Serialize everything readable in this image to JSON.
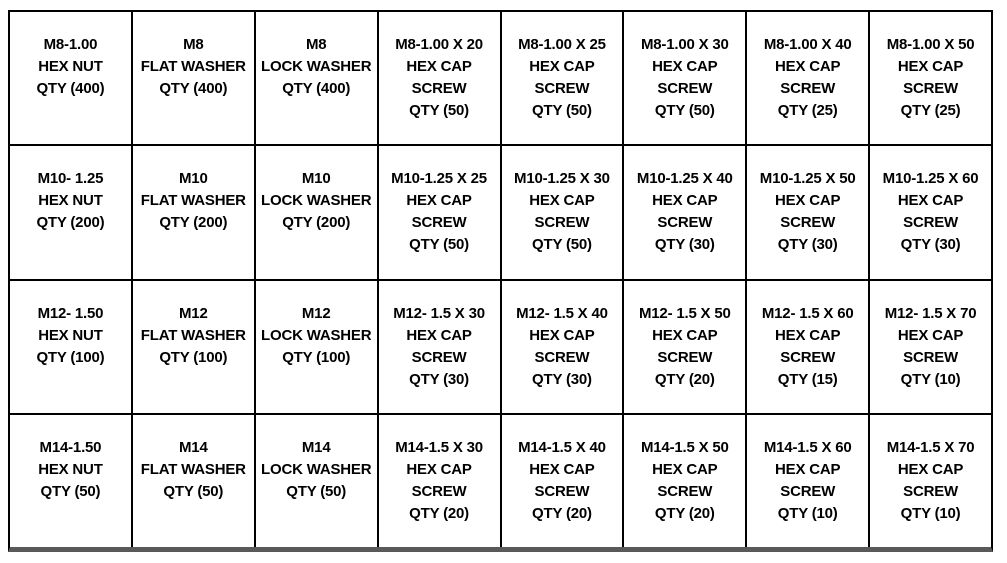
{
  "sheet": {
    "description": "Metric hardware assortment bin label sheet",
    "columns": 8,
    "row_count": 4
  },
  "colors": {
    "background": "#ffffff",
    "grid_line": "#000000",
    "bottom_edge": "#595959",
    "text": "#000000"
  },
  "grid": {
    "rows": [
      {
        "cells": [
          {
            "lines": [
              "M8-1.00",
              "HEX NUT",
              "QTY (400)"
            ]
          },
          {
            "lines": [
              "M8",
              "FLAT WASHER",
              "QTY (400)"
            ]
          },
          {
            "lines": [
              "M8",
              "LOCK WASHER",
              "QTY (400)"
            ]
          },
          {
            "lines": [
              "M8-1.00 X 20",
              "HEX CAP",
              "SCREW",
              "QTY (50)"
            ]
          },
          {
            "lines": [
              "M8-1.00 X 25",
              "HEX CAP",
              "SCREW",
              "QTY (50)"
            ]
          },
          {
            "lines": [
              "M8-1.00 X 30",
              "HEX CAP",
              "SCREW",
              "QTY (50)"
            ]
          },
          {
            "lines": [
              "M8-1.00 X 40",
              "HEX CAP",
              "SCREW",
              "QTY (25)"
            ]
          },
          {
            "lines": [
              "M8-1.00 X 50",
              "HEX CAP",
              "SCREW",
              "QTY (25)"
            ]
          }
        ]
      },
      {
        "cells": [
          {
            "lines": [
              "M10- 1.25",
              "HEX NUT",
              "QTY (200)"
            ]
          },
          {
            "lines": [
              "M10",
              "FLAT WASHER",
              "QTY (200)"
            ]
          },
          {
            "lines": [
              "M10",
              "LOCK WASHER",
              "QTY (200)"
            ]
          },
          {
            "lines": [
              "M10-1.25 X 25",
              "HEX CAP",
              "SCREW",
              "QTY (50)"
            ]
          },
          {
            "lines": [
              "M10-1.25 X 30",
              "HEX CAP",
              "SCREW",
              "QTY (50)"
            ]
          },
          {
            "lines": [
              "M10-1.25 X 40",
              "HEX CAP",
              "SCREW",
              "QTY (30)"
            ]
          },
          {
            "lines": [
              "M10-1.25 X 50",
              "HEX CAP",
              "SCREW",
              "QTY (30)"
            ]
          },
          {
            "lines": [
              "M10-1.25 X 60",
              "HEX CAP",
              "SCREW",
              "QTY (30)"
            ]
          }
        ]
      },
      {
        "cells": [
          {
            "lines": [
              "M12- 1.50",
              "HEX NUT",
              "QTY (100)"
            ]
          },
          {
            "lines": [
              "M12",
              "FLAT WASHER",
              "QTY (100)"
            ]
          },
          {
            "lines": [
              "M12",
              "LOCK WASHER",
              "QTY (100)"
            ]
          },
          {
            "lines": [
              "M12- 1.5 X 30",
              "HEX CAP",
              "SCREW",
              "QTY (30)"
            ]
          },
          {
            "lines": [
              "M12- 1.5 X 40",
              "HEX CAP",
              "SCREW",
              "QTY (30)"
            ]
          },
          {
            "lines": [
              "M12- 1.5 X 50",
              "HEX CAP",
              "SCREW",
              "QTY (20)"
            ]
          },
          {
            "lines": [
              "M12- 1.5 X 60",
              "HEX CAP",
              "SCREW",
              "QTY (15)"
            ]
          },
          {
            "lines": [
              "M12- 1.5 X 70",
              "HEX CAP",
              "SCREW",
              "QTY (10)"
            ]
          }
        ]
      },
      {
        "cells": [
          {
            "lines": [
              "M14-1.50",
              "HEX NUT",
              "QTY (50)"
            ]
          },
          {
            "lines": [
              "M14",
              "FLAT WASHER",
              "QTY (50)"
            ]
          },
          {
            "lines": [
              "M14",
              "LOCK WASHER",
              "QTY (50)"
            ]
          },
          {
            "lines": [
              "M14-1.5 X 30",
              "HEX CAP",
              "SCREW",
              "QTY (20)"
            ]
          },
          {
            "lines": [
              "M14-1.5 X 40",
              "HEX CAP",
              "SCREW",
              "QTY (20)"
            ]
          },
          {
            "lines": [
              "M14-1.5 X 50",
              "HEX CAP",
              "SCREW",
              "QTY (20)"
            ]
          },
          {
            "lines": [
              "M14-1.5 X 60",
              "HEX CAP",
              "SCREW",
              "QTY (10)"
            ]
          },
          {
            "lines": [
              "M14-1.5 X 70",
              "HEX CAP",
              "SCREW",
              "QTY (10)"
            ]
          }
        ]
      }
    ]
  }
}
